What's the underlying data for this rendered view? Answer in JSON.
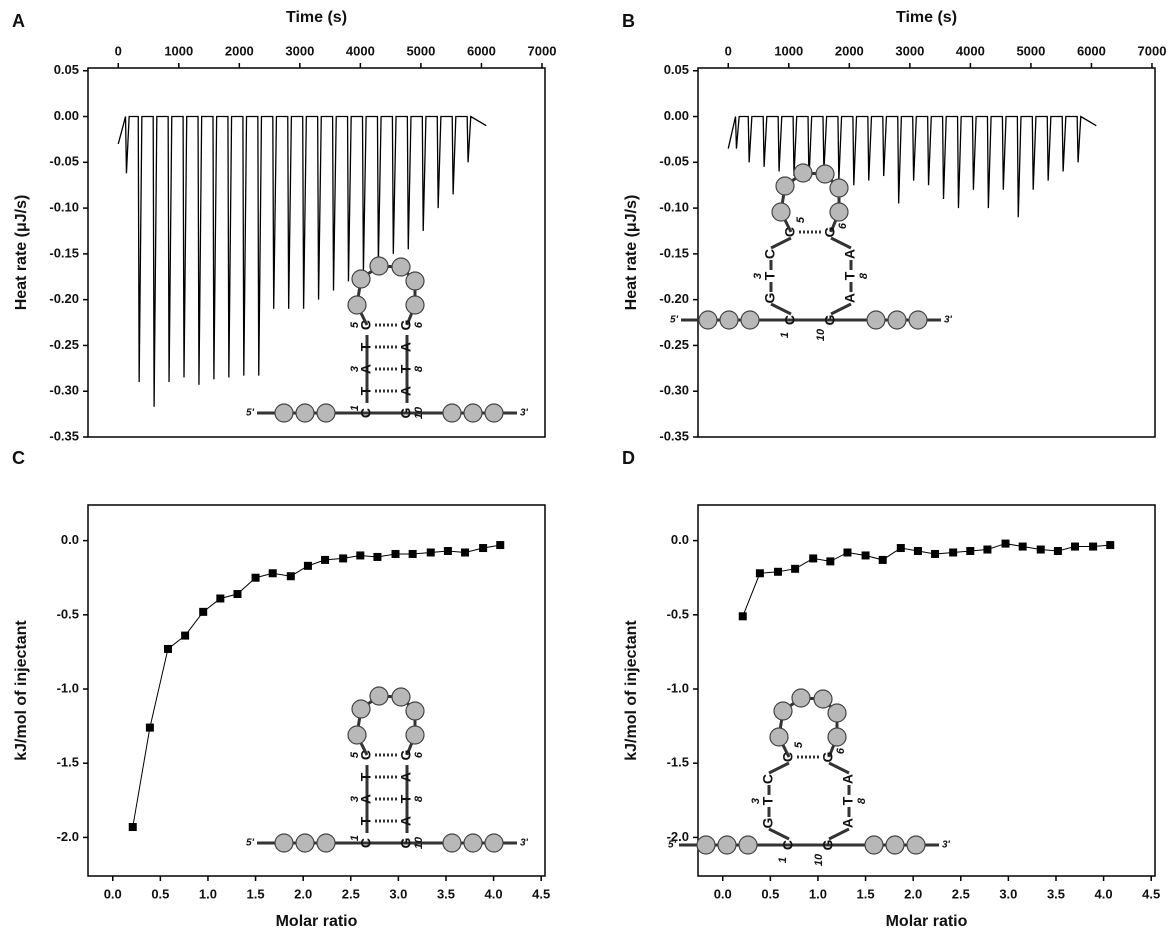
{
  "chart_data": [
    {
      "type": "line",
      "panel": "A",
      "xlabel": "Time (s)",
      "ylabel": "Heat rate (μJ/s)",
      "x_axis": "top",
      "color": "#000000",
      "x": [
        0,
        120,
        135,
        180,
        330,
        345,
        390,
        577,
        592,
        637,
        824,
        839,
        884,
        1071,
        1086,
        1131,
        1318,
        1333,
        1378,
        1565,
        1580,
        1625,
        1812,
        1827,
        1872,
        2059,
        2074,
        2119,
        2306,
        2321,
        2366,
        2553,
        2568,
        2613,
        2800,
        2815,
        2860,
        3047,
        3062,
        3107,
        3294,
        3309,
        3354,
        3541,
        3556,
        3601,
        3788,
        3803,
        3848,
        4035,
        4050,
        4095,
        4282,
        4297,
        4342,
        4529,
        4544,
        4589,
        4776,
        4791,
        4836,
        5023,
        5038,
        5083,
        5270,
        5285,
        5330,
        5517,
        5532,
        5577,
        5764,
        5779,
        5824,
        6080
      ],
      "values": [
        -0.03,
        0,
        -0.062,
        0,
        0,
        -0.29,
        0,
        0,
        -0.317,
        0,
        0,
        -0.29,
        0,
        0,
        -0.285,
        0,
        0,
        -0.293,
        0,
        0,
        -0.287,
        0,
        0,
        -0.285,
        0,
        0,
        -0.283,
        0,
        0,
        -0.283,
        0,
        0,
        -0.21,
        0,
        0,
        -0.21,
        0,
        0,
        -0.21,
        0,
        0,
        -0.2,
        0,
        0,
        -0.19,
        0,
        0,
        -0.18,
        0,
        0,
        -0.17,
        0,
        0,
        -0.16,
        0,
        0,
        -0.15,
        0,
        0,
        -0.145,
        0,
        0,
        -0.125,
        0,
        0,
        -0.1,
        0,
        0,
        -0.085,
        0,
        0,
        -0.05,
        0,
        -0.01
      ],
      "xlim": [
        -500,
        7050
      ],
      "xticks": [
        0,
        1000,
        2000,
        3000,
        4000,
        5000,
        6000,
        7000
      ],
      "ylim": [
        -0.35,
        0.053
      ],
      "yticks": [
        0.05,
        {
          "value": 0,
          "label": "0.00"
        },
        -0.05,
        {
          "value": -0.1,
          "label": "-0.10"
        },
        -0.15,
        {
          "value": -0.2,
          "label": "-0.20"
        },
        -0.25,
        {
          "value": -0.3,
          "label": "-0.30"
        },
        -0.35
      ],
      "inset": {
        "left": [
          "C",
          "T",
          "A",
          "T",
          "C"
        ],
        "right": [
          "G",
          "A",
          "T",
          "A",
          "G"
        ],
        "ends": [
          "5'",
          "3'"
        ],
        "numbers": [
          "1",
          "3",
          "5",
          "6",
          "8",
          "10"
        ]
      }
    },
    {
      "type": "line",
      "panel": "B",
      "xlabel": "Time (s)",
      "ylabel": "Heat rate (μJ/s)",
      "x_axis": "top",
      "color": "#000000",
      "x": [
        0,
        120,
        135,
        180,
        330,
        345,
        390,
        577,
        592,
        637,
        824,
        839,
        884,
        1071,
        1086,
        1131,
        1318,
        1333,
        1378,
        1565,
        1580,
        1625,
        1812,
        1827,
        1872,
        2059,
        2074,
        2119,
        2306,
        2321,
        2366,
        2553,
        2568,
        2613,
        2800,
        2815,
        2860,
        3047,
        3062,
        3107,
        3294,
        3309,
        3354,
        3541,
        3556,
        3601,
        3788,
        3803,
        3848,
        4035,
        4050,
        4095,
        4282,
        4297,
        4342,
        4529,
        4544,
        4589,
        4776,
        4791,
        4836,
        5023,
        5038,
        5083,
        5270,
        5285,
        5330,
        5517,
        5532,
        5577,
        5764,
        5779,
        5824,
        6080
      ],
      "values": [
        -0.035,
        0,
        -0.035,
        0,
        0,
        -0.05,
        0,
        0,
        -0.055,
        0,
        0,
        -0.06,
        0,
        0,
        -0.065,
        0,
        0,
        -0.07,
        0,
        0,
        -0.06,
        0,
        0,
        -0.07,
        0,
        0,
        -0.075,
        0,
        0,
        -0.07,
        0,
        0,
        -0.065,
        0,
        0,
        -0.095,
        0,
        0,
        -0.07,
        0,
        0,
        -0.075,
        0,
        0,
        -0.09,
        0,
        0,
        -0.1,
        0,
        0,
        -0.08,
        0,
        0,
        -0.1,
        0,
        0,
        -0.08,
        0,
        0,
        -0.11,
        0,
        0,
        -0.08,
        0,
        0,
        -0.07,
        0,
        0,
        -0.06,
        0,
        0,
        -0.05,
        0,
        -0.01
      ],
      "xlim": [
        -500,
        7050
      ],
      "xticks": [
        0,
        1000,
        2000,
        3000,
        4000,
        5000,
        6000,
        7000
      ],
      "ylim": [
        -0.35,
        0.053
      ],
      "yticks": [
        0.05,
        {
          "value": 0,
          "label": "0.00"
        },
        -0.05,
        {
          "value": -0.1,
          "label": "-0.10"
        },
        -0.15,
        {
          "value": -0.2,
          "label": "-0.20"
        },
        -0.25,
        {
          "value": -0.3,
          "label": "-0.30"
        },
        -0.35
      ],
      "inset": {
        "left": [
          "C",
          "G",
          "T",
          "C",
          "C"
        ],
        "right": [
          "G",
          "A",
          "T",
          "A",
          "G"
        ],
        "ends": [
          "5'",
          "3'"
        ],
        "numbers": [
          "1",
          "3",
          "5",
          "6",
          "8",
          "10"
        ]
      }
    },
    {
      "type": "line",
      "panel": "C",
      "xlabel": "Molar ratio",
      "ylabel": "kJ/mol of injectant",
      "x_axis": "bottom",
      "marker": "square",
      "color": "#000000",
      "x": [
        0.21,
        0.39,
        0.58,
        0.76,
        0.95,
        1.13,
        1.31,
        1.5,
        1.68,
        1.87,
        2.05,
        2.23,
        2.42,
        2.6,
        2.78,
        2.97,
        3.15,
        3.34,
        3.52,
        3.7,
        3.89,
        4.07
      ],
      "values": [
        -1.93,
        -1.26,
        -0.73,
        -0.64,
        -0.48,
        -0.39,
        -0.36,
        -0.25,
        -0.22,
        -0.24,
        -0.17,
        -0.13,
        -0.12,
        -0.1,
        -0.11,
        -0.09,
        -0.09,
        -0.08,
        -0.07,
        -0.08,
        -0.05,
        -0.03
      ],
      "xlim": [
        -0.26,
        4.54
      ],
      "xticks": [
        {
          "value": 0,
          "label": "0.0"
        },
        0.5,
        {
          "value": 1,
          "label": "1.0"
        },
        1.5,
        {
          "value": 2,
          "label": "2.0"
        },
        2.5,
        {
          "value": 3,
          "label": "3.0"
        },
        3.5,
        {
          "value": 4,
          "label": "4.0"
        },
        4.5
      ],
      "ylim": [
        -2.26,
        0.24
      ],
      "yticks": [
        {
          "value": 0,
          "label": "0.0"
        },
        -0.5,
        {
          "value": -1,
          "label": "-1.0"
        },
        -1.5,
        {
          "value": -2,
          "label": "-2.0"
        }
      ],
      "inset": {
        "left": [
          "C",
          "T",
          "A",
          "T",
          "C"
        ],
        "right": [
          "G",
          "A",
          "T",
          "A",
          "G"
        ],
        "ends": [
          "5'",
          "3'"
        ],
        "numbers": [
          "1",
          "3",
          "5",
          "6",
          "8",
          "10"
        ]
      }
    },
    {
      "type": "line",
      "panel": "D",
      "xlabel": "Molar ratio",
      "ylabel": "kJ/mol of injectant",
      "x_axis": "bottom",
      "marker": "square",
      "color": "#000000",
      "x": [
        0.21,
        0.39,
        0.58,
        0.76,
        0.95,
        1.13,
        1.31,
        1.5,
        1.68,
        1.87,
        2.05,
        2.23,
        2.42,
        2.6,
        2.78,
        2.97,
        3.15,
        3.34,
        3.52,
        3.7,
        3.89,
        4.07
      ],
      "values": [
        -0.51,
        -0.22,
        -0.21,
        -0.19,
        -0.12,
        -0.14,
        -0.08,
        -0.1,
        -0.13,
        -0.05,
        -0.07,
        -0.09,
        -0.08,
        -0.07,
        -0.06,
        -0.02,
        -0.04,
        -0.06,
        -0.07,
        -0.04,
        -0.04,
        -0.03
      ],
      "xlim": [
        -0.26,
        4.54
      ],
      "xticks": [
        {
          "value": 0,
          "label": "0.0"
        },
        0.5,
        {
          "value": 1,
          "label": "1.0"
        },
        1.5,
        {
          "value": 2,
          "label": "2.0"
        },
        2.5,
        {
          "value": 3,
          "label": "3.0"
        },
        3.5,
        {
          "value": 4,
          "label": "4.0"
        },
        4.5
      ],
      "ylim": [
        -2.26,
        0.24
      ],
      "yticks": [
        {
          "value": 0,
          "label": "0.0"
        },
        -0.5,
        {
          "value": -1,
          "label": "-1.0"
        },
        -1.5,
        {
          "value": -2,
          "label": "-2.0"
        }
      ],
      "inset": {
        "left": [
          "C",
          "G",
          "T",
          "C",
          "C"
        ],
        "right": [
          "G",
          "A",
          "T",
          "A",
          "G"
        ],
        "ends": [
          "5'",
          "3'"
        ],
        "numbers": [
          "1",
          "3",
          "5",
          "6",
          "8",
          "10"
        ]
      }
    }
  ]
}
